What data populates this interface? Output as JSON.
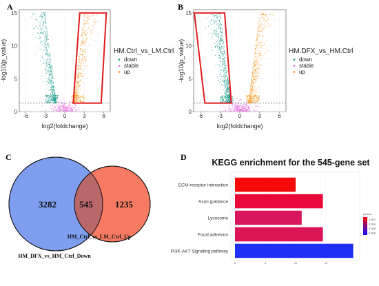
{
  "panel_labels": {
    "a": "A",
    "b": "B",
    "c": "C",
    "d": "D"
  },
  "chart_data": [
    {
      "id": "A",
      "type": "scatter",
      "xlabel": "log2(foldchange)",
      "ylabel": "-log10(p_value)",
      "xticks": [
        "-6",
        "-3",
        "0",
        "3",
        "6"
      ],
      "yticks": [
        "0",
        "5",
        "10",
        "15"
      ],
      "xlim": [
        -7,
        7
      ],
      "ylim": [
        0,
        15.5
      ],
      "threshold_y": 1.3,
      "threshold_x": 1,
      "legend_title": "HM.Ctrl_vs_LM.Ctrl",
      "legend": [
        {
          "label": "down",
          "color": "#1a9c8c"
        },
        {
          "label": "stable",
          "color": "#e46fe0"
        },
        {
          "label": "up",
          "color": "#f5a02a"
        }
      ],
      "highlight": {
        "color": "#e01b1b",
        "side": "up",
        "polygon": [
          [
            1.3,
            1.3
          ],
          [
            2.3,
            15
          ],
          [
            6.4,
            15
          ],
          [
            5.6,
            1.3
          ]
        ]
      },
      "points": {
        "down": 480,
        "up": 420,
        "stable": 260
      }
    },
    {
      "id": "B",
      "type": "scatter",
      "xlabel": "log2(foldchange)",
      "ylabel": "-log10(p_value)",
      "xticks": [
        "-6",
        "-3",
        "0",
        "3",
        "6"
      ],
      "yticks": [
        "0",
        "5",
        "10",
        "15"
      ],
      "xlim": [
        -7,
        7
      ],
      "ylim": [
        0,
        15.5
      ],
      "threshold_y": 1.3,
      "threshold_x": 1,
      "legend_title": "HM.DFX_vs_HM.Ctrl",
      "legend": [
        {
          "label": "down",
          "color": "#1a9c8c"
        },
        {
          "label": "stable",
          "color": "#e46fe0"
        },
        {
          "label": "up",
          "color": "#f5a02a"
        }
      ],
      "highlight": {
        "color": "#e01b1b",
        "side": "down",
        "polygon": [
          [
            -5.3,
            1.3
          ],
          [
            -6.9,
            15
          ],
          [
            -2.3,
            15
          ],
          [
            -1.3,
            1.3
          ]
        ]
      },
      "points": {
        "down": 560,
        "up": 500,
        "stable": 300
      }
    },
    {
      "id": "C",
      "type": "venn",
      "sets": [
        {
          "name": "HM_DFX_vs_HM_Ctrl_Down",
          "only": 3282,
          "color": "#7f9ef0"
        },
        {
          "name": "HM_Ctrl_vs_LM_Ctrl_Up",
          "only": 1235,
          "color": "#f77b62"
        }
      ],
      "intersection": 545,
      "intersection_color": "#b9686a"
    },
    {
      "id": "D",
      "type": "bar",
      "orientation": "horizontal",
      "title": "KEGG enrichment for the 545-gene set",
      "categories": [
        "ECM-receptor interaction",
        "Axon guidance",
        "Lysosome",
        "Focal adhesion",
        "PI3K-AKT Signaling pathway"
      ],
      "values": [
        10,
        14.5,
        11,
        14.5,
        19.5
      ],
      "colors": [
        "#f50a0a",
        "#e8093a",
        "#d8165e",
        "#dc1455",
        "#1f2ff5"
      ],
      "xticks": [
        "0",
        "5",
        "10",
        "15"
      ],
      "xlim": [
        0,
        20
      ],
      "legend": {
        "title": "pvalue",
        "gradient": [
          "#ff0000",
          "#1010ff"
        ],
        "ticks": [
          "0.002",
          "0.004",
          "0.006",
          "0.008"
        ]
      }
    }
  ]
}
